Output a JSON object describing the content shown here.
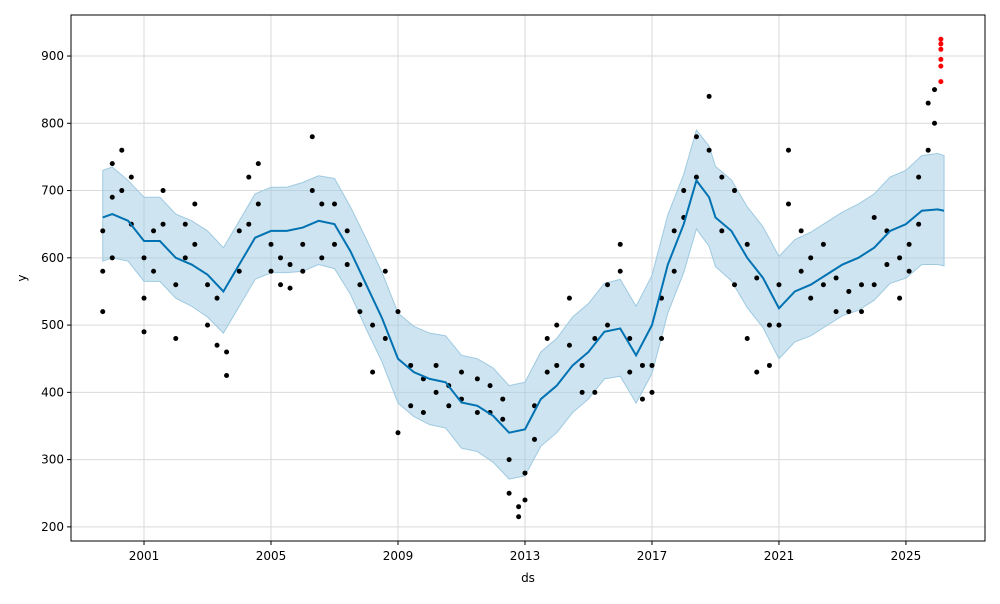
{
  "chart_data": {
    "type": "forecast",
    "xlabel": "ds",
    "ylabel": "y",
    "xlim": [
      1998.7,
      2027.49
    ],
    "xticks": [
      2001,
      2005,
      2009,
      2013,
      2017,
      2021,
      2025
    ],
    "ylim": [
      179,
      961
    ],
    "yticks": [
      200,
      300,
      400,
      500,
      600,
      700,
      800,
      900
    ],
    "grid": true,
    "actual": {
      "color": "#000000",
      "x": [
        1999.7,
        1999.7,
        1999.7,
        2000.0,
        2000.0,
        2000.0,
        2000.3,
        2000.3,
        2000.6,
        2000.6,
        2001.0,
        2001.0,
        2001.0,
        2001.3,
        2001.3,
        2001.6,
        2001.6,
        2002.0,
        2002.0,
        2002.3,
        2002.3,
        2002.6,
        2002.6,
        2003.0,
        2003.0,
        2003.3,
        2003.3,
        2003.6,
        2003.6,
        2004.0,
        2004.0,
        2004.3,
        2004.3,
        2004.6,
        2004.6,
        2005.0,
        2005.0,
        2005.3,
        2005.3,
        2005.6,
        2005.6,
        2006.0,
        2006.0,
        2006.3,
        2006.3,
        2006.6,
        2006.6,
        2007.0,
        2007.0,
        2007.4,
        2007.4,
        2007.8,
        2007.8,
        2008.2,
        2008.2,
        2008.6,
        2008.6,
        2009.0,
        2009.0,
        2009.4,
        2009.4,
        2009.8,
        2009.8,
        2010.2,
        2010.2,
        2010.6,
        2010.6,
        2011.0,
        2011.0,
        2011.5,
        2011.5,
        2011.9,
        2011.9,
        2012.3,
        2012.3,
        2012.5,
        2012.5,
        2012.8,
        2012.8,
        2013.0,
        2013.0,
        2013.3,
        2013.3,
        2013.7,
        2013.7,
        2014.0,
        2014.0,
        2014.4,
        2014.4,
        2014.8,
        2014.8,
        2015.2,
        2015.2,
        2015.6,
        2015.6,
        2016.0,
        2016.0,
        2016.3,
        2016.3,
        2016.7,
        2016.7,
        2017.0,
        2017.0,
        2017.3,
        2017.3,
        2017.7,
        2017.7,
        2018.0,
        2018.0,
        2018.4,
        2018.4,
        2018.8,
        2018.8,
        2019.2,
        2019.2,
        2019.6,
        2019.6,
        2020.0,
        2020.0,
        2020.3,
        2020.3,
        2020.7,
        2020.7,
        2021.0,
        2021.0,
        2021.3,
        2021.3,
        2021.7,
        2021.7,
        2022.0,
        2022.0,
        2022.4,
        2022.4,
        2022.8,
        2022.8,
        2023.2,
        2023.2,
        2023.6,
        2023.6,
        2024.0,
        2024.0,
        2024.4,
        2024.4,
        2024.8,
        2024.8,
        2025.1,
        2025.1,
        2025.4,
        2025.4,
        2025.7,
        2025.7,
        2025.9,
        2025.9
      ],
      "values": [
        640,
        580,
        520,
        740,
        690,
        600,
        760,
        700,
        720,
        650,
        600,
        540,
        490,
        640,
        580,
        700,
        650,
        560,
        480,
        650,
        600,
        680,
        620,
        560,
        500,
        540,
        470,
        460,
        425,
        640,
        580,
        720,
        650,
        740,
        680,
        620,
        580,
        600,
        560,
        590,
        555,
        620,
        580,
        780,
        700,
        680,
        600,
        680,
        620,
        640,
        590,
        560,
        520,
        500,
        430,
        580,
        480,
        520,
        340,
        440,
        380,
        420,
        370,
        440,
        400,
        410,
        380,
        430,
        390,
        420,
        370,
        410,
        370,
        390,
        360,
        300,
        250,
        230,
        215,
        280,
        240,
        380,
        330,
        480,
        430,
        500,
        440,
        540,
        470,
        440,
        400,
        480,
        400,
        560,
        500,
        620,
        580,
        480,
        430,
        440,
        390,
        440,
        400,
        540,
        480,
        640,
        580,
        700,
        660,
        780,
        720,
        840,
        760,
        720,
        640,
        700,
        560,
        620,
        480,
        570,
        430,
        500,
        440,
        560,
        500,
        760,
        680,
        640,
        580,
        600,
        540,
        620,
        560,
        570,
        520,
        550,
        520,
        560,
        520,
        660,
        560,
        640,
        590,
        600,
        540,
        620,
        580,
        720,
        650,
        830,
        760,
        850,
        800
      ]
    },
    "outliers": {
      "color": "#ff0000",
      "x": [
        2026.1,
        2026.1,
        2026.1,
        2026.1,
        2026.1,
        2026.1
      ],
      "values": [
        925,
        918,
        910,
        895,
        885,
        862
      ]
    },
    "forecast": {
      "color": "#0072b2",
      "band_color": "#9ecae1",
      "x": [
        1999.7,
        2000.0,
        2000.5,
        2001.0,
        2001.5,
        2002.0,
        2002.5,
        2003.0,
        2003.5,
        2004.0,
        2004.5,
        2005.0,
        2005.5,
        2006.0,
        2006.5,
        2007.0,
        2007.5,
        2008.0,
        2008.5,
        2009.0,
        2009.5,
        2010.0,
        2010.5,
        2011.0,
        2011.5,
        2012.0,
        2012.5,
        2013.0,
        2013.5,
        2014.0,
        2014.5,
        2015.0,
        2015.5,
        2016.0,
        2016.5,
        2017.0,
        2017.5,
        2018.0,
        2018.4,
        2018.8,
        2019.0,
        2019.5,
        2020.0,
        2020.5,
        2021.0,
        2021.5,
        2022.0,
        2022.5,
        2023.0,
        2023.5,
        2024.0,
        2024.5,
        2025.0,
        2025.5,
        2026.0,
        2026.2
      ],
      "values": [
        660,
        665,
        655,
        625,
        625,
        600,
        590,
        575,
        550,
        590,
        630,
        640,
        640,
        645,
        655,
        650,
        610,
        560,
        510,
        450,
        430,
        420,
        415,
        385,
        380,
        365,
        340,
        345,
        390,
        410,
        440,
        460,
        490,
        495,
        455,
        500,
        590,
        650,
        715,
        690,
        660,
        640,
        600,
        570,
        525,
        550,
        560,
        575,
        590,
        600,
        615,
        640,
        650,
        670,
        672,
        670
      ],
      "upper": [
        730,
        735,
        715,
        690,
        690,
        665,
        655,
        640,
        615,
        655,
        695,
        705,
        705,
        712,
        722,
        718,
        676,
        628,
        578,
        518,
        498,
        488,
        484,
        455,
        450,
        436,
        410,
        415,
        460,
        480,
        512,
        532,
        562,
        568,
        528,
        574,
        664,
        724,
        790,
        766,
        736,
        716,
        676,
        646,
        602,
        627,
        638,
        653,
        668,
        680,
        695,
        720,
        730,
        752,
        755,
        752
      ],
      "lower": [
        595,
        600,
        595,
        565,
        565,
        540,
        528,
        512,
        488,
        528,
        568,
        578,
        578,
        580,
        590,
        584,
        546,
        494,
        445,
        384,
        364,
        352,
        347,
        317,
        312,
        296,
        271,
        276,
        320,
        340,
        370,
        390,
        420,
        424,
        384,
        428,
        518,
        578,
        643,
        617,
        587,
        566,
        526,
        496,
        450,
        475,
        484,
        499,
        514,
        522,
        537,
        562,
        570,
        590,
        590,
        588
      ]
    }
  }
}
